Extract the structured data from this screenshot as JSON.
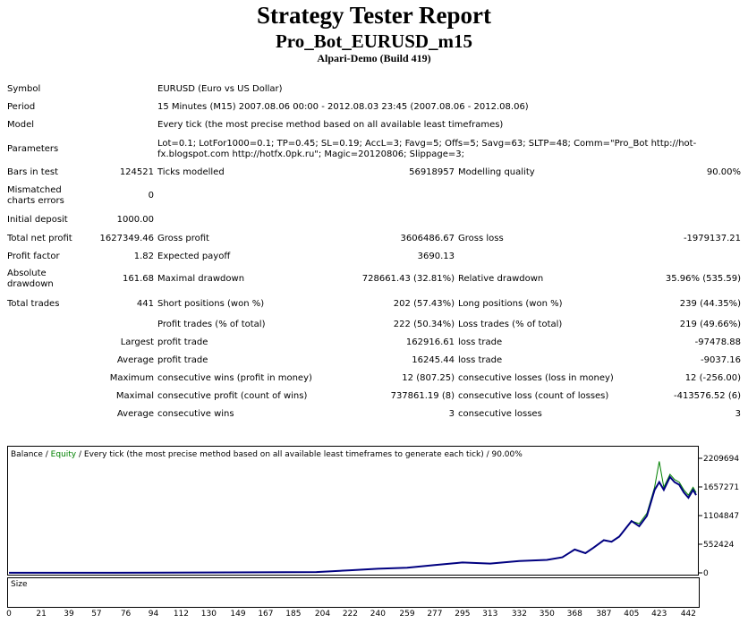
{
  "header": {
    "title": "Strategy Tester Report",
    "subtitle": "Pro_Bot_EURUSD_m15",
    "server": "Alpari-Demo (Build 419)"
  },
  "report": {
    "symbol_label": "Symbol",
    "symbol": "EURUSD (Euro vs US Dollar)",
    "period_label": "Period",
    "period": "15 Minutes (M15) 2007.08.06 00:00 - 2012.08.03 23:45 (2007.08.06 - 2012.08.06)",
    "model_label": "Model",
    "model": "Every tick (the most precise method based on all available least timeframes)",
    "params_label": "Parameters",
    "params": "Lot=0.1; LotFor1000=0.1; TP=0.45; SL=0.19; AccL=3; Favg=5; Offs=5; Savg=63; SLTP=48; Comm=\"Pro_Bot http://hot-fx.blogspot.com http://hotfx.0pk.ru\"; Magic=20120806; Slippage=3;",
    "bars_label": "Bars in test",
    "bars": "124521",
    "ticks_label": "Ticks modelled",
    "ticks": "56918957",
    "quality_label": "Modelling quality",
    "quality": "90.00%",
    "mismatch_label": "Mismatched charts errors",
    "mismatch": "0",
    "deposit_label": "Initial deposit",
    "deposit": "1000.00",
    "netprofit_label": "Total net profit",
    "netprofit": "1627349.46",
    "grossprofit_label": "Gross profit",
    "grossprofit": "3606486.67",
    "grossloss_label": "Gross loss",
    "grossloss": "-1979137.21",
    "pf_label": "Profit factor",
    "pf": "1.82",
    "payoff_label": "Expected payoff",
    "payoff": "3690.13",
    "absdd_label": "Absolute drawdown",
    "absdd": "161.68",
    "maxdd_label": "Maximal drawdown",
    "maxdd": "728661.43 (32.81%)",
    "reldd_label": "Relative drawdown",
    "reldd": "35.96% (535.59)",
    "trades_label": "Total trades",
    "trades": "441",
    "short_label": "Short positions (won %)",
    "short": "202 (57.43%)",
    "long_label": "Long positions (won %)",
    "long": "239 (44.35%)",
    "profit_trades_label": "Profit trades (% of total)",
    "profit_trades": "222 (50.34%)",
    "loss_trades_label": "Loss trades (% of total)",
    "loss_trades": "219 (49.66%)",
    "largest_label": "Largest",
    "largest_profit_label": "profit trade",
    "largest_profit": "162916.61",
    "largest_loss_label": "loss trade",
    "largest_loss": "-97478.88",
    "average_label": "Average",
    "average_profit_label": "profit trade",
    "average_profit": "16245.44",
    "average_loss_label": "loss trade",
    "average_loss": "-9037.16",
    "maximum_label": "Maximum",
    "max_wins_label": "consecutive wins (profit in money)",
    "max_wins": "12 (807.25)",
    "max_losses_label": "consecutive losses (loss in money)",
    "max_losses": "12 (-256.00)",
    "maximal_label": "Maximal",
    "maximal_wins_label": "consecutive profit (count of wins)",
    "maximal_wins": "737861.19 (8)",
    "maximal_losses_label": "consecutive loss (count of losses)",
    "maximal_losses": "-413576.52 (6)",
    "avg2_label": "Average",
    "avg_wins_label": "consecutive wins",
    "avg_wins": "3",
    "avg_losses_label": "consecutive losses",
    "avg_losses": "3"
  },
  "chart_legend": {
    "balance": "Balance",
    "sep": " / ",
    "equity": "Equity",
    "rest": " / Every tick (the most precise method based on all available least timeframes to generate each tick) / 90.00%"
  },
  "size_label": "Size",
  "chart_data": {
    "type": "line",
    "ylim": [
      0,
      2209694
    ],
    "yticks": [
      "2209694",
      "1657271",
      "1104847",
      "552424",
      "0"
    ],
    "ytick_values": [
      2209694,
      1657271,
      1104847,
      552424,
      0
    ],
    "xticks": [
      "0",
      "21",
      "39",
      "57",
      "76",
      "94",
      "112",
      "130",
      "149",
      "167",
      "185",
      "204",
      "222",
      "240",
      "259",
      "277",
      "295",
      "313",
      "332",
      "350",
      "368",
      "387",
      "405",
      "423",
      "442"
    ],
    "xlim": [
      0,
      447
    ],
    "colors": {
      "balance": "#000080",
      "equity": "#008000"
    },
    "series": [
      {
        "name": "Balance",
        "x": [
          0,
          100,
          200,
          222,
          240,
          259,
          277,
          295,
          313,
          332,
          350,
          360,
          368,
          375,
          380,
          387,
          392,
          397,
          405,
          410,
          415,
          420,
          423,
          426,
          430,
          433,
          436,
          439,
          442,
          445,
          447
        ],
        "values": [
          1000,
          3000,
          15000,
          50000,
          80000,
          100000,
          150000,
          200000,
          180000,
          230000,
          250000,
          300000,
          450000,
          380000,
          480000,
          630000,
          600000,
          700000,
          1000000,
          900000,
          1100000,
          1600000,
          1750000,
          1600000,
          1850000,
          1750000,
          1700000,
          1550000,
          1450000,
          1600000,
          1500000
        ]
      },
      {
        "name": "Equity",
        "x": [
          405,
          410,
          415,
          420,
          423,
          426,
          430,
          433,
          436,
          439,
          442,
          445,
          447
        ],
        "values": [
          1000000,
          950000,
          1150000,
          1650000,
          2150000,
          1650000,
          1900000,
          1800000,
          1750000,
          1600000,
          1500000,
          1650000,
          1550000
        ]
      }
    ]
  }
}
